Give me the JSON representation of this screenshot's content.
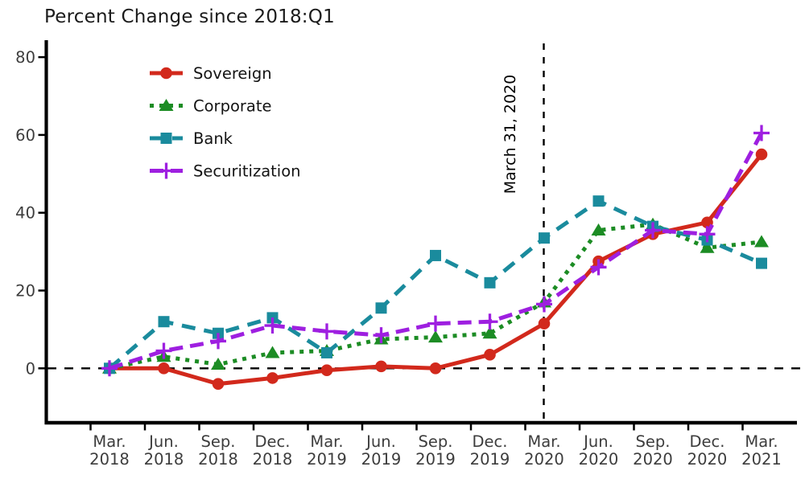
{
  "title": "Percent Change since 2018:Q1",
  "chart_data": {
    "type": "line",
    "title": "Percent Change since 2018:Q1",
    "xlabel": "",
    "ylabel": "",
    "grid": false,
    "legend_position": "top-left-inside",
    "y_ticks": [
      0,
      20,
      40,
      60,
      80
    ],
    "ylim": [
      -15,
      84
    ],
    "categories": [
      "Mar. 2018",
      "Jun. 2018",
      "Sep. 2018",
      "Dec. 2018",
      "Mar. 2019",
      "Jun. 2019",
      "Sep. 2019",
      "Dec. 2019",
      "Mar. 2020",
      "Jun. 2020",
      "Sep. 2020",
      "Dec. 2020",
      "Mar. 2021"
    ],
    "series": [
      {
        "name": "Sovereign",
        "color": "#d2291c",
        "marker": "circle",
        "dash": "solid",
        "values": [
          0,
          0,
          -4,
          -2.5,
          -0.5,
          0.5,
          0,
          3.5,
          11.5,
          27.5,
          34.5,
          37.5,
          55
        ]
      },
      {
        "name": "Corporate",
        "color": "#1c8c24",
        "marker": "triangle",
        "dash": "dotted",
        "values": [
          0,
          3,
          1,
          4,
          4.5,
          7.5,
          8,
          9,
          17,
          35.5,
          37,
          31,
          32.5
        ]
      },
      {
        "name": "Bank",
        "color": "#1a8b9d",
        "marker": "square",
        "dash": "longdash",
        "values": [
          0,
          12,
          9,
          13,
          4,
          15.5,
          29,
          22,
          33.5,
          43,
          36.5,
          33,
          27
        ]
      },
      {
        "name": "Securitization",
        "color": "#9e1fe0",
        "marker": "plus",
        "dash": "dash",
        "values": [
          0,
          4.5,
          7,
          11,
          9.5,
          8.5,
          11.5,
          12,
          16.5,
          26,
          35.5,
          34.5,
          60.5
        ]
      }
    ],
    "reference_lines": {
      "horizontal": {
        "y": 0,
        "style": "dashed",
        "color": "#000000"
      },
      "vertical": {
        "x": "Mar. 2020",
        "style": "dashed",
        "color": "#000000",
        "label": "March 31, 2020"
      }
    }
  }
}
